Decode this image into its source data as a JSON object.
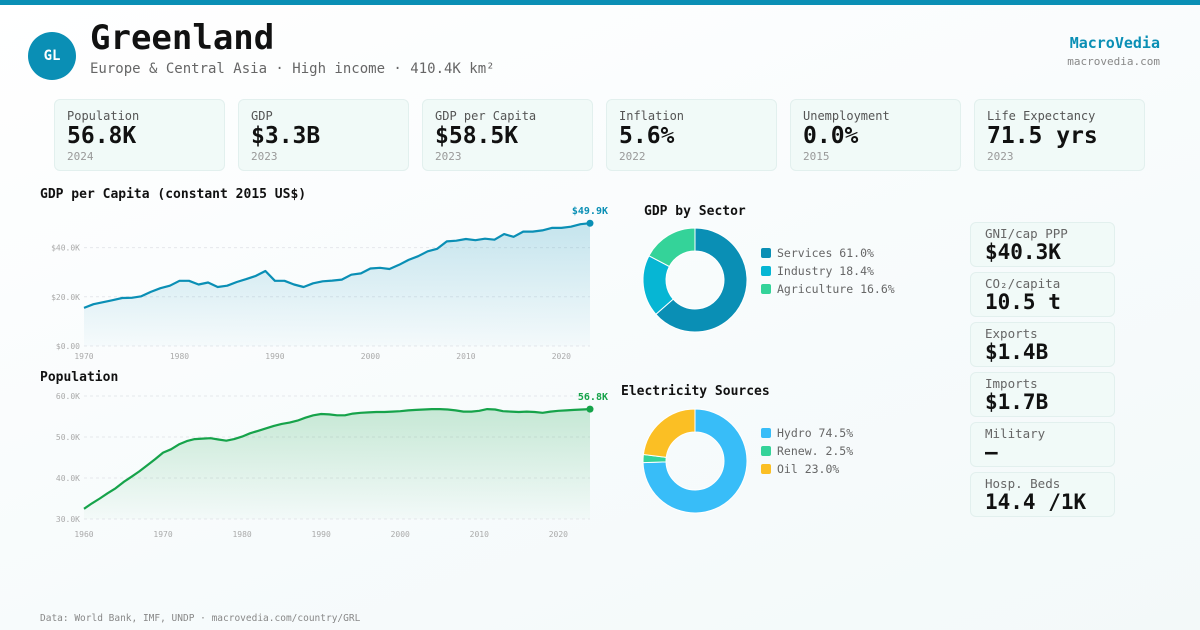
{
  "header": {
    "initials": "GL",
    "title": "Greenland",
    "subtitle": "Europe & Central Asia · High income · 410.4K km²",
    "brand": "MacroVedia",
    "brand_url": "macrovedia.com"
  },
  "stats": [
    {
      "label": "Population",
      "value": "56.8K",
      "year": "2024"
    },
    {
      "label": "GDP",
      "value": "$3.3B",
      "year": "2023"
    },
    {
      "label": "GDP per Capita",
      "value": "$58.5K",
      "year": "2023"
    },
    {
      "label": "Inflation",
      "value": "5.6%",
      "year": "2022"
    },
    {
      "label": "Unemployment",
      "value": "0.0%",
      "year": "2015"
    },
    {
      "label": "Life Expectancy",
      "value": "71.5 yrs",
      "year": "2023"
    }
  ],
  "side": [
    {
      "label": "GNI/cap PPP",
      "value": "$40.3K"
    },
    {
      "label": "CO₂/capita",
      "value": "10.5 t"
    },
    {
      "label": "Exports",
      "value": "$1.4B"
    },
    {
      "label": "Imports",
      "value": "$1.7B"
    },
    {
      "label": "Military",
      "value": "—"
    },
    {
      "label": "Hosp. Beds",
      "value": "14.4 /1K"
    }
  ],
  "footer": "Data: World Bank, IMF, UNDP · macrovedia.com/country/GRL",
  "colors": {
    "accent": "#0a8fb5",
    "green": "#16a34a"
  },
  "chart_data": [
    {
      "type": "area",
      "title": "GDP per Capita (constant 2015 US$)",
      "x_start": 1970,
      "ylim": [
        0,
        50000
      ],
      "yticks": [
        "$0.00",
        "$20.0K",
        "$40.0K"
      ],
      "ytick_values": [
        0,
        20000,
        40000
      ],
      "xticks": [
        "1970",
        "1980",
        "1990",
        "2000",
        "2010",
        "2020"
      ],
      "end_label": "$49.9K",
      "color": "#0a8fb5",
      "values": [
        15.5,
        17,
        17.8,
        18.6,
        19.5,
        19.6,
        20.2,
        22,
        23.5,
        24.5,
        26.5,
        26.5,
        25,
        25.8,
        24,
        24.5,
        26,
        27.2,
        28.5,
        30.5,
        26.5,
        26.5,
        25,
        24,
        25.5,
        26.3,
        26.6,
        27,
        29,
        29.5,
        31.5,
        31.8,
        31.3,
        33,
        35,
        36.5,
        38.5,
        39.5,
        42.5,
        42.8,
        43.5,
        43,
        43.6,
        43.2,
        45.5,
        44.4,
        46.5,
        46.5,
        47,
        48,
        48,
        48.5,
        49.5,
        49.9
      ],
      "unit": "thousand US$"
    },
    {
      "type": "area",
      "title": "Population",
      "x_start": 1960,
      "ylim": [
        30000,
        60000
      ],
      "yticks": [
        "30.0K",
        "40.0K",
        "50.0K",
        "60.0K"
      ],
      "ytick_values": [
        30000,
        40000,
        50000,
        60000
      ],
      "xticks": [
        "1960",
        "1970",
        "1980",
        "1990",
        "2000",
        "2010",
        "2020"
      ],
      "end_label": "56.8K",
      "color": "#16a34a",
      "values": [
        32.5,
        33.8,
        35,
        36.3,
        37.5,
        39,
        40.3,
        41.6,
        43.1,
        44.6,
        46.2,
        47,
        48.2,
        49,
        49.5,
        49.6,
        49.7,
        49.4,
        49.1,
        49.5,
        50.1,
        50.9,
        51.5,
        52.1,
        52.7,
        53.2,
        53.5,
        54,
        54.7,
        55.3,
        55.6,
        55.5,
        55.3,
        55.3,
        55.7,
        55.9,
        56,
        56.1,
        56.1,
        56.2,
        56.3,
        56.5,
        56.6,
        56.7,
        56.8,
        56.8,
        56.7,
        56.5,
        56.2,
        56.2,
        56.4,
        56.8,
        56.7,
        56.3,
        56.2,
        56.1,
        56.2,
        56.1,
        55.9,
        56.2,
        56.4,
        56.5,
        56.6,
        56.7,
        56.8
      ],
      "unit": "thousand"
    },
    {
      "type": "pie",
      "title": "GDP by Sector",
      "slices": [
        {
          "label": "Services 61.0%",
          "value": 61.0,
          "color": "#0a8fb5"
        },
        {
          "label": "Industry 18.4%",
          "value": 18.4,
          "color": "#06b6d4"
        },
        {
          "label": "Agriculture 16.6%",
          "value": 16.6,
          "color": "#34d399"
        }
      ]
    },
    {
      "type": "pie",
      "title": "Electricity Sources",
      "slices": [
        {
          "label": "Hydro 74.5%",
          "value": 74.5,
          "color": "#38bdf8"
        },
        {
          "label": "Renew. 2.5%",
          "value": 2.5,
          "color": "#34d399"
        },
        {
          "label": "Oil 23.0%",
          "value": 23.0,
          "color": "#fbbf24"
        }
      ]
    }
  ]
}
